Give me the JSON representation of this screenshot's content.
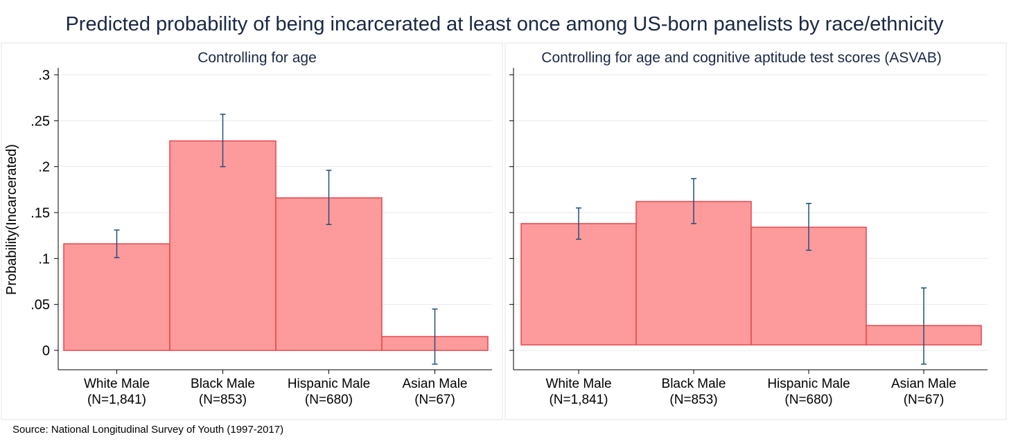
{
  "title": "Predicted probability of being incarcerated at least once among US-born panelists by race/ethnicity",
  "source": "Source: National Longitudinal Survey of Youth (1997-2017)",
  "colors": {
    "bar_fill": "#fd9b9c",
    "bar_stroke": "#e8444a",
    "error_bar": "#1f4e79",
    "grid": "#eaeaea",
    "title_text": "#1a2744"
  },
  "chart_data": [
    {
      "type": "bar",
      "title": "Controlling for age",
      "ylabel": "Probability(Incarcerated)",
      "ylim": [
        -0.02,
        0.305
      ],
      "yticks": [
        0,
        0.05,
        0.1,
        0.15,
        0.2,
        0.25,
        0.3
      ],
      "ytick_labels": [
        "0",
        ".05",
        ".1",
        ".15",
        ".2",
        ".25",
        ".3"
      ],
      "show_y_labels": true,
      "grid": true,
      "categories": [
        "White Male",
        "Black Male",
        "Hispanic Male",
        "Asian Male"
      ],
      "category_ns": [
        "(N=1,841)",
        "(N=853)",
        "(N=680)",
        "(N=67)"
      ],
      "values": [
        0.116,
        0.228,
        0.166,
        0.015
      ],
      "ci_low": [
        0.101,
        0.2,
        0.137,
        -0.015
      ],
      "ci_high": [
        0.131,
        0.257,
        0.196,
        0.045
      ]
    },
    {
      "type": "bar",
      "title": "Controlling for age and cognitive aptitude test scores (ASVAB)",
      "ylabel": "",
      "ylim": [
        -0.02,
        0.305
      ],
      "yticks": [
        0,
        0.05,
        0.1,
        0.15,
        0.2,
        0.25,
        0.3
      ],
      "show_y_labels": false,
      "grid": true,
      "bar_base": 0.006,
      "categories": [
        "White Male",
        "Black Male",
        "Hispanic Male",
        "Asian Male"
      ],
      "category_ns": [
        "(N=1,841)",
        "(N=853)",
        "(N=680)",
        "(N=67)"
      ],
      "values": [
        0.138,
        0.162,
        0.134,
        0.027
      ],
      "ci_low": [
        0.121,
        0.138,
        0.109,
        -0.015
      ],
      "ci_high": [
        0.155,
        0.187,
        0.16,
        0.068
      ]
    }
  ]
}
